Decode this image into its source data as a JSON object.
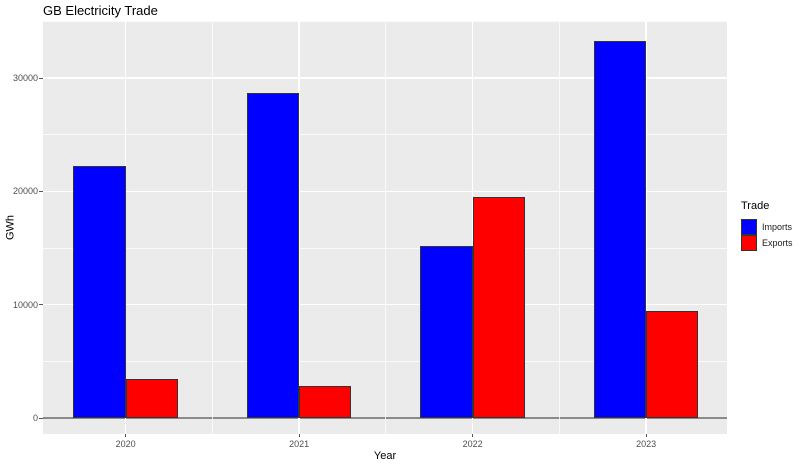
{
  "chart_data": {
    "type": "bar",
    "title": "GB Electricity Trade",
    "xlabel": "Year",
    "ylabel": "GWh",
    "categories": [
      "2020",
      "2021",
      "2022",
      "2023"
    ],
    "series": [
      {
        "name": "Imports",
        "color": "#0000FF",
        "values": [
          22200,
          28700,
          15200,
          33300
        ]
      },
      {
        "name": "Exports",
        "color": "#FF0000",
        "values": [
          3400,
          2800,
          19500,
          9400
        ]
      }
    ],
    "yticks": [
      0,
      10000,
      20000,
      30000
    ],
    "ylim": [
      0,
      35000
    ],
    "legend_title": "Trade",
    "legend_position": "right",
    "grid": true,
    "panel_bg": "#EBEBEB",
    "grid_color": "#FFFFFF",
    "zero_line_color": "#8a8a8a",
    "bar_outline_color": "#333333",
    "tick_label_color": "#4d4d4d"
  }
}
